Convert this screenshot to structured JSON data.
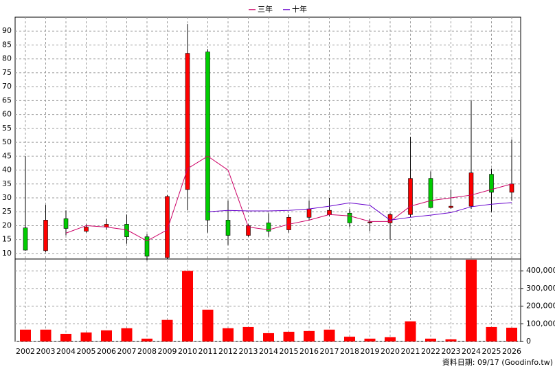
{
  "chart_data": [
    {
      "type": "candlestick",
      "categories": [
        "2002",
        "2003",
        "2004",
        "2005",
        "2006",
        "2007",
        "2008",
        "2009",
        "2010",
        "2011",
        "2012",
        "2013",
        "2014",
        "2015",
        "2016",
        "2017",
        "2018",
        "2019",
        "2020",
        "2021",
        "2022",
        "2023",
        "2024",
        "2025",
        "2026"
      ],
      "open": [
        19.2,
        11,
        22.5,
        18,
        19.5,
        20.5,
        16,
        8.5,
        33,
        82.5,
        22,
        16.5,
        21,
        18.5,
        23,
        24,
        24.5,
        21,
        21,
        24,
        37,
        26.5,
        27,
        38.5,
        32
      ],
      "high": [
        45,
        27.5,
        25.5,
        20.5,
        22.5,
        24,
        17,
        31,
        92.5,
        83.5,
        29,
        20.5,
        24.5,
        24,
        29,
        30,
        26,
        22.5,
        24.5,
        52,
        39.5,
        33,
        65,
        40.5,
        51
      ],
      "low": [
        11,
        10.5,
        16.5,
        17.5,
        18.5,
        13.5,
        7.5,
        8,
        25.5,
        17.5,
        13,
        16,
        16,
        17.5,
        22,
        23.5,
        19.5,
        18,
        15,
        23,
        26.5,
        26,
        26,
        25,
        29
      ],
      "close": [
        11.2,
        22,
        19,
        19.5,
        20.5,
        16,
        9,
        30.5,
        82,
        22,
        16.5,
        20,
        18,
        23,
        26,
        25.5,
        21,
        21.3,
        24,
        37,
        26.5,
        27,
        39,
        32,
        35
      ],
      "up_color": "#ff0000",
      "down_color": "#00cc00",
      "series": [
        {
          "name": "三年",
          "color": "#cc0066",
          "values": [
            null,
            null,
            17.3,
            20,
            19.5,
            18.5,
            14.5,
            18.5,
            40.5,
            45,
            40,
            19.5,
            18.5,
            20.5,
            22,
            24,
            23.5,
            21.5,
            21.5,
            27,
            29,
            30,
            31,
            33,
            35
          ]
        },
        {
          "name": "十年",
          "color": "#6600cc",
          "values": [
            null,
            null,
            null,
            null,
            null,
            null,
            null,
            null,
            null,
            25,
            25.5,
            25.3,
            25.3,
            25.5,
            26,
            27,
            28.2,
            27.3,
            22,
            23,
            23.8,
            24.7,
            26.8,
            27.7,
            28.3
          ]
        }
      ],
      "ylim": [
        8,
        95
      ],
      "yticks": [
        10,
        15,
        20,
        25,
        30,
        35,
        40,
        45,
        50,
        55,
        60,
        65,
        70,
        75,
        80,
        85,
        90
      ],
      "grid": true
    },
    {
      "type": "bar",
      "values": [
        67000,
        67000,
        43000,
        51000,
        63000,
        75000,
        16000,
        122000,
        400000,
        180000,
        75000,
        82000,
        47000,
        55000,
        59000,
        67000,
        27000,
        16000,
        24000,
        114000,
        16000,
        12000,
        463000,
        82000,
        78000
      ],
      "color": "#ff0000",
      "ylim": [
        0,
        467000
      ],
      "yticks": [
        0,
        {
          "value": 100000,
          "label": "100,000"
        },
        {
          "value": 200000,
          "label": "200,000"
        },
        {
          "value": 300000,
          "label": "300,000"
        },
        {
          "value": 400000,
          "label": "400,000"
        }
      ],
      "grid": true,
      "footnote": "資料日期: 09/17 (Goodinfo.tw)"
    }
  ]
}
